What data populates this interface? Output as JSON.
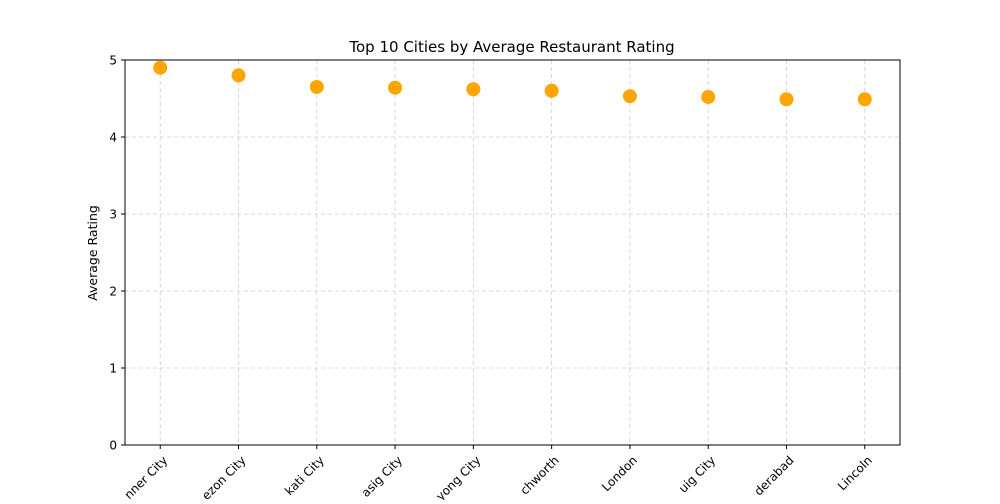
{
  "chart_data": {
    "type": "scatter",
    "title": "Top 10 Cities by Average Restaurant Rating",
    "xlabel": "",
    "ylabel": "Average Rating",
    "categories": [
      "Inner City",
      "Quezon City",
      "Makati City",
      "Pasig City",
      "Mandaluyong City",
      "Rest of Hyderabad... Letchworth",
      "London",
      "Taguig City",
      "Secunderabad",
      "Lincoln"
    ],
    "tick_labels_visible": [
      "nner City",
      "ezon City",
      "kati City",
      "asig City",
      "yong City",
      "chworth",
      "London",
      "uig City",
      "derabad",
      "Lincoln"
    ],
    "values": [
      4.9,
      4.8,
      4.65,
      4.64,
      4.62,
      4.6,
      4.53,
      4.52,
      4.49,
      4.49
    ],
    "ylim": [
      0,
      5
    ],
    "yticks": [
      0,
      1,
      2,
      3,
      4,
      5
    ],
    "grid": true,
    "marker_color": "#ffa500"
  }
}
